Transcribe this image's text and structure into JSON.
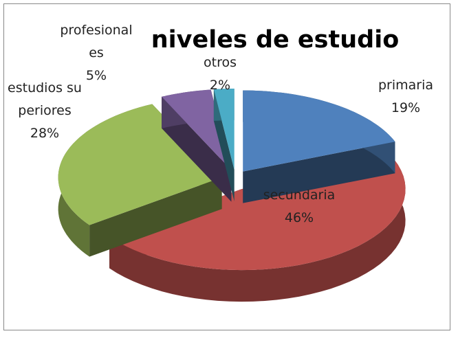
{
  "chart_data": {
    "type": "pie",
    "title": "niveles de estudio",
    "categories": [
      "primaria",
      "secundaria",
      "estudios superiores",
      "profesionales",
      "otros"
    ],
    "values": [
      19,
      46,
      28,
      5,
      2
    ],
    "value_labels": [
      "19%",
      "46%",
      "28%",
      "5%",
      "2%"
    ],
    "colors": [
      "#4f81bd",
      "#c0504d",
      "#9bbb59",
      "#8064a2",
      "#4bacc6"
    ],
    "legend": false
  }
}
